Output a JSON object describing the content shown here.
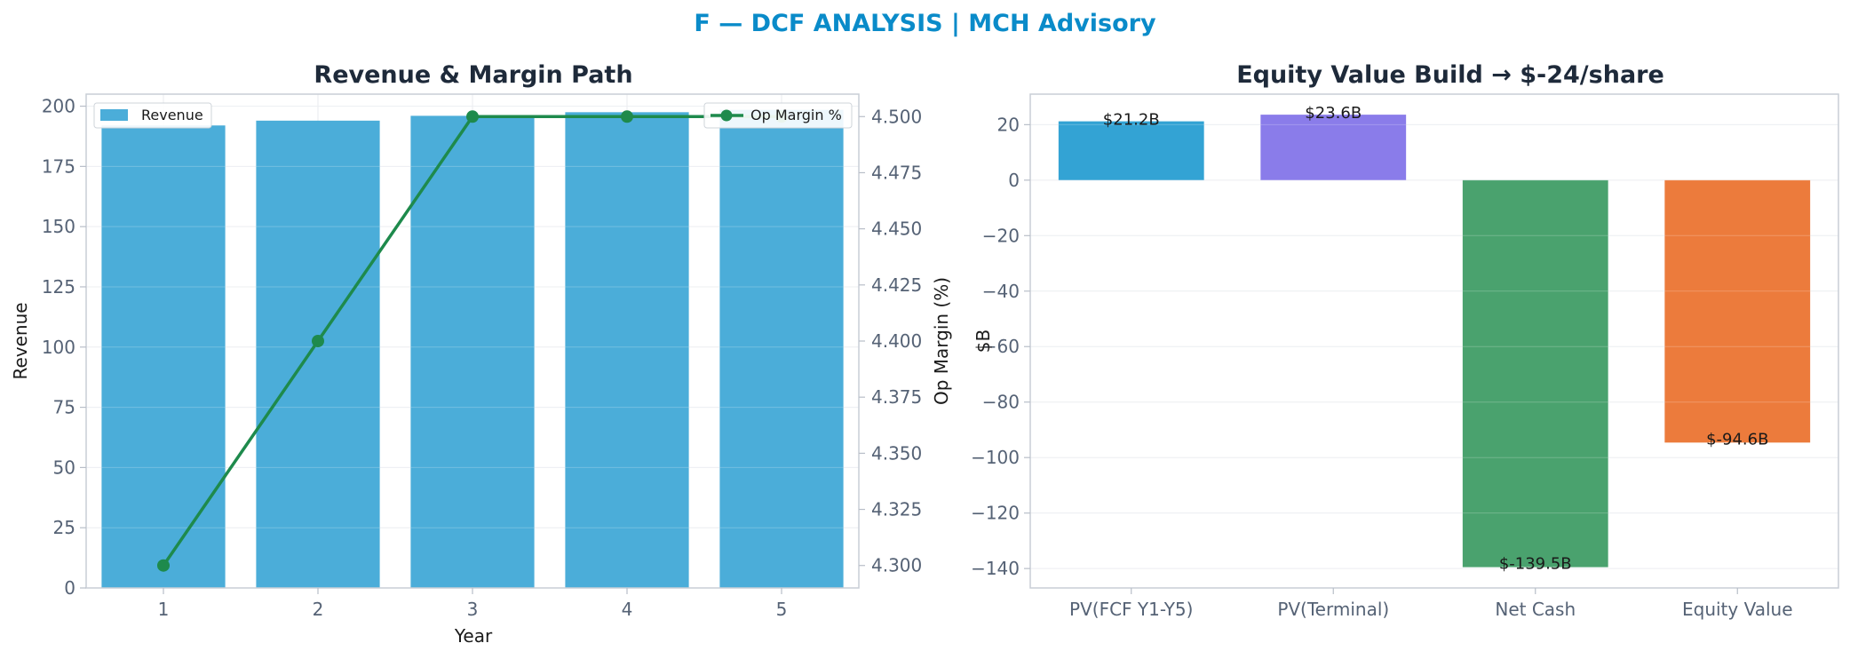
{
  "page_title": "F — DCF ANALYSIS | MCH Advisory",
  "colors": {
    "title": "#0a8bc9",
    "revenue_bar": "#4badd9",
    "op_margin_line": "#1e8a4c",
    "waterfall": [
      "#33a3d4",
      "#8a7cea",
      "#4aa26e",
      "#ec7b3c"
    ]
  },
  "chart_data": [
    {
      "type": "bar",
      "title": "Revenue & Margin Path",
      "xlabel": "Year",
      "ylabel": "Revenue",
      "y2label": "Op Margin (%)",
      "categories": [
        "1",
        "2",
        "3",
        "4",
        "5"
      ],
      "series": [
        {
          "name": "Revenue",
          "type": "bar",
          "axis": "left",
          "values": [
            192,
            194,
            196,
            197.5,
            198.5
          ]
        },
        {
          "name": "Op Margin %",
          "type": "line",
          "axis": "right",
          "values": [
            4.3,
            4.4,
            4.5,
            4.5,
            4.5
          ]
        }
      ],
      "ylim": [
        0,
        205
      ],
      "y2lim": [
        4.29,
        4.51
      ],
      "yticks": [
        0,
        25,
        50,
        75,
        100,
        125,
        150,
        175,
        200
      ],
      "y2ticks": [
        "4.300",
        "4.325",
        "4.350",
        "4.375",
        "4.400",
        "4.425",
        "4.450",
        "4.475",
        "4.500"
      ],
      "legend": {
        "left": "upper-left",
        "right": "upper-right"
      },
      "grid": true
    },
    {
      "type": "bar",
      "title": "Equity Value Build → $-24/share",
      "xlabel": "",
      "ylabel": "$B",
      "categories": [
        "PV(FCF Y1-Y5)",
        "PV(Terminal)",
        "Net Cash",
        "Equity Value"
      ],
      "values": [
        21.2,
        23.6,
        -139.5,
        -94.6
      ],
      "data_labels": [
        "$21.2B",
        "$23.6B",
        "$-139.5B",
        "$-94.6B"
      ],
      "ylim": [
        -147,
        31
      ],
      "yticks": [
        20,
        0,
        -20,
        -40,
        -60,
        -80,
        -100,
        -120,
        -140
      ],
      "ytick_labels": [
        "20",
        "0",
        "−20",
        "−40",
        "−60",
        "−80",
        "−100",
        "−120",
        "−140"
      ],
      "grid": true
    }
  ]
}
